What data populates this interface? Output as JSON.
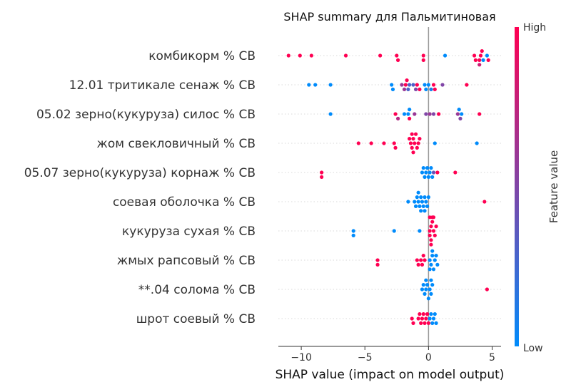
{
  "chart_data": {
    "type": "scatter",
    "subtype": "shap-beeswarm",
    "title": "SHAP summary для Пальмитиновая",
    "xlabel": "SHAP value (impact on model output)",
    "xlim": [
      -11.8,
      5.7
    ],
    "xticks": [
      -10,
      -5,
      0,
      5
    ],
    "xtick_labels": [
      "−10",
      "−5",
      "0",
      "5"
    ],
    "colorbar": {
      "title": "Feature value",
      "high_label": "High",
      "low_label": "Low",
      "low_color": "#008bfb",
      "high_color": "#ff0052"
    },
    "features": [
      {
        "name": "комбикорм % СВ",
        "points": [
          [
            -11,
            1
          ],
          [
            -10.1,
            1
          ],
          [
            -9.2,
            1
          ],
          [
            -6.5,
            1
          ],
          [
            -3.8,
            1
          ],
          [
            -2.5,
            1
          ],
          [
            -2.4,
            1
          ],
          [
            -0.4,
            1
          ],
          [
            -0.4,
            1
          ],
          [
            1.3,
            0
          ],
          [
            3.6,
            1
          ],
          [
            3.7,
            1
          ],
          [
            4.1,
            1
          ],
          [
            4.3,
            0
          ],
          [
            4.6,
            0
          ],
          [
            4.7,
            1
          ],
          [
            4.0,
            1
          ],
          [
            4.2,
            1
          ],
          [
            4.0,
            0.8
          ]
        ]
      },
      {
        "name": "12.01 тритикале сенаж % СВ",
        "points": [
          [
            -9.4,
            0
          ],
          [
            -8.9,
            0
          ],
          [
            -7.7,
            0
          ],
          [
            -2.9,
            0
          ],
          [
            -2.8,
            0
          ],
          [
            -2.1,
            0.6
          ],
          [
            -1.9,
            0.6
          ],
          [
            -1.8,
            1
          ],
          [
            -1.7,
            1
          ],
          [
            -1.6,
            0.3
          ],
          [
            -1.5,
            0.3
          ],
          [
            -1.2,
            0.3
          ],
          [
            -1.0,
            0.5
          ],
          [
            -0.9,
            1
          ],
          [
            -0.7,
            1
          ],
          [
            -0.3,
            0
          ],
          [
            -0.2,
            0
          ],
          [
            0,
            0
          ],
          [
            0.2,
            0.1
          ],
          [
            0.4,
            1
          ],
          [
            0.5,
            1
          ],
          [
            1.1,
            0.5
          ],
          [
            3.0,
            1
          ]
        ]
      },
      {
        "name": "05.02 зерно(кукуруза) силос % СВ",
        "points": [
          [
            -7.7,
            0
          ],
          [
            -2.6,
            1
          ],
          [
            -2.4,
            0.7
          ],
          [
            -1.9,
            0
          ],
          [
            -1.6,
            0
          ],
          [
            -1.5,
            1
          ],
          [
            -1.5,
            0
          ],
          [
            -1.1,
            0.6
          ],
          [
            -0.2,
            0.5
          ],
          [
            0.1,
            0.6
          ],
          [
            0.4,
            0.5
          ],
          [
            0.8,
            1
          ],
          [
            2.3,
            0.6
          ],
          [
            2.5,
            0.5
          ],
          [
            2.4,
            0
          ],
          [
            2.6,
            0
          ],
          [
            4.0,
            1
          ]
        ]
      },
      {
        "name": "жом свекловичный % СВ",
        "points": [
          [
            -5.5,
            1
          ],
          [
            -4.5,
            1
          ],
          [
            -3.5,
            1
          ],
          [
            -2.7,
            1
          ],
          [
            -2.6,
            1
          ],
          [
            -1.4,
            1
          ],
          [
            -1.3,
            1
          ],
          [
            -1.2,
            1
          ],
          [
            -1.1,
            1
          ],
          [
            -0.9,
            1
          ],
          [
            -0.8,
            1
          ],
          [
            -1.5,
            1
          ],
          [
            -1.2,
            1
          ],
          [
            -0.7,
            1
          ],
          [
            -1.3,
            1
          ],
          [
            -1.0,
            1
          ],
          [
            0.5,
            0
          ],
          [
            3.8,
            0
          ]
        ]
      },
      {
        "name": "05.07 зерно(кукуруза) корнаж % СВ",
        "points": [
          [
            -8.4,
            1
          ],
          [
            -8.4,
            1
          ],
          [
            -0.5,
            0
          ],
          [
            -0.3,
            0
          ],
          [
            -0.2,
            0
          ],
          [
            -0.1,
            0
          ],
          [
            0,
            0
          ],
          [
            0.1,
            0
          ],
          [
            0.2,
            0
          ],
          [
            0.3,
            0
          ],
          [
            -0.4,
            0
          ],
          [
            0.4,
            0.4
          ],
          [
            0.7,
            1
          ],
          [
            2.1,
            1
          ]
        ]
      },
      {
        "name": "соевая оболочка % СВ",
        "points": [
          [
            -1.6,
            0
          ],
          [
            -1.1,
            0
          ],
          [
            -1.0,
            0
          ],
          [
            -0.9,
            0
          ],
          [
            -0.8,
            0
          ],
          [
            -0.7,
            0
          ],
          [
            -0.6,
            0
          ],
          [
            -0.5,
            0
          ],
          [
            -0.4,
            0
          ],
          [
            -0.3,
            0
          ],
          [
            -0.2,
            0
          ],
          [
            -0.1,
            0
          ],
          [
            0,
            0
          ],
          [
            -0.6,
            0
          ],
          [
            -0.3,
            0
          ],
          [
            -0.8,
            0
          ],
          [
            4.4,
            1
          ]
        ]
      },
      {
        "name": "кукуруза сухая % СВ",
        "points": [
          [
            -5.9,
            0
          ],
          [
            -5.9,
            0
          ],
          [
            -2.7,
            0
          ],
          [
            -0.7,
            0
          ],
          [
            0.1,
            1
          ],
          [
            0.1,
            1
          ],
          [
            0.2,
            1
          ],
          [
            0.2,
            1
          ],
          [
            0.3,
            1
          ],
          [
            0.4,
            1
          ],
          [
            0.5,
            1
          ],
          [
            0.6,
            1
          ],
          [
            0.2,
            1
          ],
          [
            0.3,
            1
          ],
          [
            0.1,
            1
          ],
          [
            0.4,
            1
          ]
        ]
      },
      {
        "name": "жмых рапсовый % СВ",
        "points": [
          [
            -4.0,
            1
          ],
          [
            -4.0,
            1
          ],
          [
            -0.9,
            1
          ],
          [
            -0.8,
            1
          ],
          [
            -0.6,
            1
          ],
          [
            -0.5,
            1
          ],
          [
            -0.3,
            1
          ],
          [
            0.1,
            0
          ],
          [
            0.2,
            0
          ],
          [
            0.3,
            0
          ],
          [
            0.5,
            0
          ],
          [
            0.7,
            0
          ],
          [
            0.1,
            0
          ],
          [
            0.4,
            0
          ],
          [
            0.6,
            0
          ],
          [
            -0.4,
            1
          ],
          [
            0.3,
            0
          ]
        ]
      },
      {
        "name": "**.04 солома % СВ",
        "points": [
          [
            -0.5,
            0
          ],
          [
            -0.3,
            0
          ],
          [
            -0.2,
            0
          ],
          [
            -0.1,
            0
          ],
          [
            0.1,
            0
          ],
          [
            0.2,
            0
          ],
          [
            0.3,
            0
          ],
          [
            -0.4,
            0
          ],
          [
            0,
            0
          ],
          [
            0.2,
            0
          ],
          [
            -0.2,
            0
          ],
          [
            4.6,
            1
          ]
        ]
      },
      {
        "name": "шрот соевый % СВ",
        "points": [
          [
            -1.3,
            1
          ],
          [
            -1.2,
            1
          ],
          [
            -0.8,
            1
          ],
          [
            -0.6,
            1
          ],
          [
            -0.5,
            1
          ],
          [
            -0.3,
            1
          ],
          [
            -0.2,
            1
          ],
          [
            -0.1,
            1
          ],
          [
            0,
            1
          ],
          [
            0.1,
            0
          ],
          [
            0.3,
            0
          ],
          [
            0.4,
            0
          ],
          [
            0.6,
            0
          ],
          [
            -0.4,
            1
          ],
          [
            0.2,
            0
          ],
          [
            0.5,
            0
          ],
          [
            -0.7,
            1
          ]
        ]
      }
    ]
  }
}
